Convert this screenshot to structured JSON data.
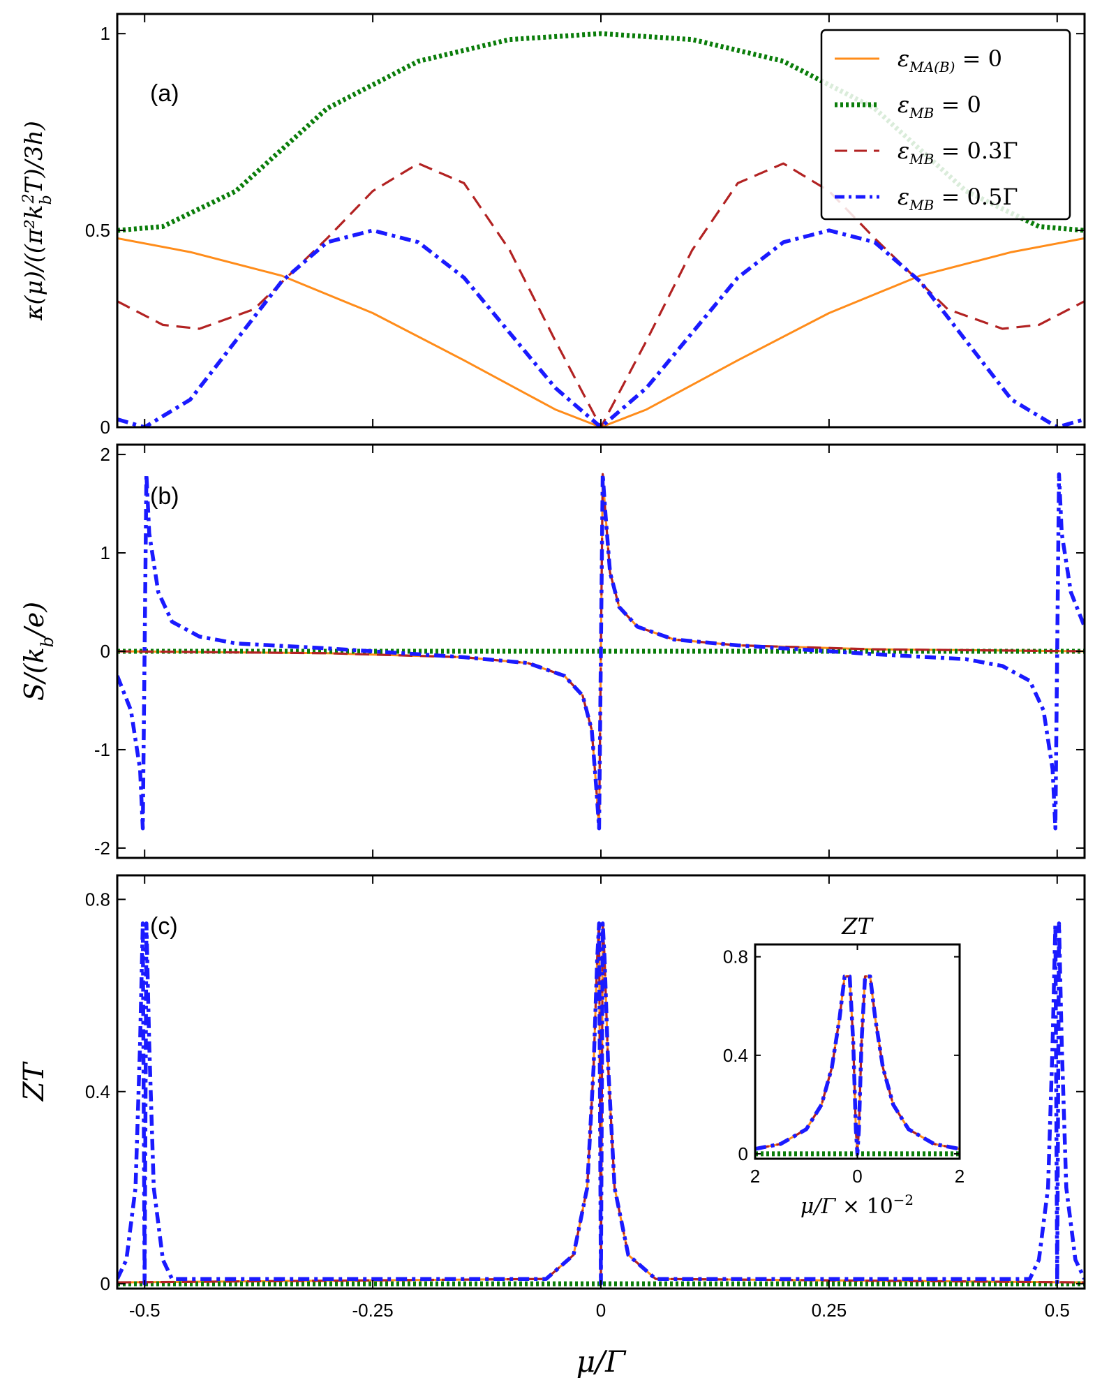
{
  "chart_data": [
    {
      "type": "line",
      "panel_label": "(a)",
      "ylabel": "κ(μ)/((π²k_b²T)/3h)",
      "xlim": [
        -0.53,
        0.53
      ],
      "ylim": [
        0,
        1.05
      ],
      "xticks": [
        -0.5,
        -0.25,
        0,
        0.25,
        0.5
      ],
      "yticks": [
        0,
        0.5,
        1
      ],
      "ytick_labels": [
        "0",
        "0.5",
        "1"
      ],
      "legend_position": "top-right",
      "series": [
        {
          "name": "ε_MA(B) = 0",
          "color": "#ff8c1a",
          "dash": "solid",
          "x": [
            -0.53,
            -0.45,
            -0.35,
            -0.25,
            -0.15,
            -0.05,
            0,
            0.05,
            0.15,
            0.25,
            0.35,
            0.45,
            0.53
          ],
          "y": [
            0.48,
            0.445,
            0.385,
            0.29,
            0.17,
            0.045,
            0,
            0.045,
            0.17,
            0.29,
            0.385,
            0.445,
            0.48
          ]
        },
        {
          "name": "ε_MB = 0",
          "color": "#0a7d0a",
          "dash": "dotted",
          "x": [
            -0.53,
            -0.48,
            -0.4,
            -0.3,
            -0.2,
            -0.1,
            0,
            0.1,
            0.2,
            0.3,
            0.4,
            0.48,
            0.53
          ],
          "y": [
            0.5,
            0.51,
            0.6,
            0.81,
            0.93,
            0.985,
            1.0,
            0.985,
            0.93,
            0.81,
            0.6,
            0.51,
            0.5
          ]
        },
        {
          "name": "ε_MB = 0.3Γ",
          "color": "#b22222",
          "dash": "dashed",
          "x": [
            -0.53,
            -0.48,
            -0.44,
            -0.38,
            -0.3,
            -0.25,
            -0.2,
            -0.15,
            -0.1,
            -0.05,
            0,
            0.05,
            0.1,
            0.15,
            0.2,
            0.25,
            0.3,
            0.38,
            0.44,
            0.48,
            0.53
          ],
          "y": [
            0.32,
            0.26,
            0.25,
            0.3,
            0.48,
            0.6,
            0.67,
            0.62,
            0.45,
            0.22,
            0,
            0.22,
            0.45,
            0.62,
            0.67,
            0.6,
            0.48,
            0.3,
            0.25,
            0.26,
            0.32
          ]
        },
        {
          "name": "ε_MB = 0.5Γ",
          "color": "#1a1aff",
          "dash": "dashdot",
          "x": [
            -0.53,
            -0.5,
            -0.45,
            -0.4,
            -0.35,
            -0.3,
            -0.25,
            -0.2,
            -0.15,
            -0.1,
            -0.05,
            0,
            0.05,
            0.1,
            0.15,
            0.2,
            0.25,
            0.3,
            0.35,
            0.4,
            0.45,
            0.5,
            0.53
          ],
          "y": [
            0.02,
            0,
            0.07,
            0.22,
            0.37,
            0.47,
            0.5,
            0.47,
            0.38,
            0.24,
            0.1,
            0,
            0.1,
            0.24,
            0.38,
            0.47,
            0.5,
            0.47,
            0.37,
            0.22,
            0.07,
            0,
            0.02
          ]
        }
      ]
    },
    {
      "type": "line",
      "panel_label": "(b)",
      "ylabel": "S/(k_b/e)",
      "xlim": [
        -0.53,
        0.53
      ],
      "ylim": [
        -2.1,
        2.1
      ],
      "xticks": [
        -0.5,
        -0.25,
        0,
        0.25,
        0.5
      ],
      "yticks": [
        -2,
        -1,
        0,
        1,
        2
      ],
      "ytick_labels": [
        "-2",
        "-1",
        "0",
        "1",
        "2"
      ],
      "series": [
        {
          "name": "ε_MA(B) = 0",
          "color": "#ff8c1a",
          "dash": "solid",
          "x": [
            -0.53,
            -0.3,
            -0.15,
            -0.08,
            -0.04,
            -0.02,
            -0.01,
            -0.005,
            -0.002,
            0,
            0.002,
            0.005,
            0.01,
            0.02,
            0.04,
            0.08,
            0.15,
            0.3,
            0.53
          ],
          "y": [
            0,
            -0.02,
            -0.06,
            -0.12,
            -0.25,
            -0.45,
            -0.8,
            -1.4,
            -1.8,
            0,
            1.8,
            1.4,
            0.8,
            0.45,
            0.25,
            0.12,
            0.06,
            0.02,
            0
          ]
        },
        {
          "name": "ε_MB = 0",
          "color": "#0a7d0a",
          "dash": "dotted",
          "x": [
            -0.53,
            0.53
          ],
          "y": [
            0,
            0
          ]
        },
        {
          "name": "ε_MB = 0.3Γ",
          "color": "#b22222",
          "dash": "dashed",
          "x": [
            -0.53,
            -0.3,
            -0.15,
            -0.08,
            -0.04,
            -0.02,
            -0.01,
            -0.005,
            -0.002,
            0,
            0.002,
            0.005,
            0.01,
            0.02,
            0.04,
            0.08,
            0.15,
            0.3,
            0.53
          ],
          "y": [
            0,
            -0.02,
            -0.06,
            -0.12,
            -0.25,
            -0.45,
            -0.8,
            -1.4,
            -1.8,
            0,
            1.8,
            1.4,
            0.8,
            0.45,
            0.25,
            0.12,
            0.06,
            0.02,
            0
          ]
        },
        {
          "name": "ε_MB = 0.5Γ",
          "color": "#1a1aff",
          "dash": "dashdot",
          "x": [
            -0.53,
            -0.515,
            -0.505,
            -0.502,
            -0.5,
            -0.498,
            -0.495,
            -0.485,
            -0.47,
            -0.44,
            -0.4,
            -0.3,
            -0.15,
            -0.08,
            -0.04,
            -0.02,
            -0.01,
            -0.005,
            -0.002,
            0,
            0.002,
            0.005,
            0.01,
            0.02,
            0.04,
            0.08,
            0.15,
            0.3,
            0.4,
            0.44,
            0.47,
            0.485,
            0.495,
            0.498,
            0.5,
            0.502,
            0.505,
            0.515,
            0.53
          ],
          "y": [
            -0.25,
            -0.6,
            -1.2,
            -1.8,
            0,
            1.8,
            1.2,
            0.6,
            0.3,
            0.15,
            0.08,
            0.03,
            -0.06,
            -0.12,
            -0.25,
            -0.45,
            -0.8,
            -1.4,
            -1.8,
            0,
            1.8,
            1.4,
            0.8,
            0.45,
            0.25,
            0.12,
            0.06,
            -0.03,
            -0.08,
            -0.15,
            -0.3,
            -0.6,
            -1.2,
            -1.8,
            0,
            1.8,
            1.2,
            0.6,
            0.25
          ]
        }
      ]
    },
    {
      "type": "line",
      "panel_label": "(c)",
      "ylabel": "ZT",
      "xlabel": "μ/Γ",
      "xlim": [
        -0.53,
        0.53
      ],
      "ylim": [
        -0.01,
        0.85
      ],
      "xticks": [
        -0.5,
        -0.25,
        0,
        0.25,
        0.5
      ],
      "xtick_labels": [
        "-0.5",
        "-0.25",
        "0",
        "0.25",
        "0.5"
      ],
      "yticks": [
        0,
        0.4,
        0.8
      ],
      "ytick_labels": [
        "0",
        "0.4",
        "0.8"
      ],
      "series": [
        {
          "name": "ε_MA(B) = 0",
          "color": "#ff8c1a",
          "dash": "solid",
          "x": [
            -0.53,
            -0.06,
            -0.03,
            -0.015,
            -0.008,
            -0.004,
            -0.002,
            0,
            0.002,
            0.004,
            0.008,
            0.015,
            0.03,
            0.06,
            0.53
          ],
          "y": [
            0.003,
            0.01,
            0.06,
            0.2,
            0.45,
            0.68,
            0.75,
            0,
            0.75,
            0.68,
            0.45,
            0.2,
            0.06,
            0.01,
            0.003
          ]
        },
        {
          "name": "ε_MB = 0",
          "color": "#0a7d0a",
          "dash": "dotted",
          "x": [
            -0.53,
            0.53
          ],
          "y": [
            0,
            0
          ]
        },
        {
          "name": "ε_MB = 0.3Γ",
          "color": "#b22222",
          "dash": "dashed",
          "x": [
            -0.53,
            -0.06,
            -0.03,
            -0.015,
            -0.008,
            -0.004,
            -0.002,
            0,
            0.002,
            0.004,
            0.008,
            0.015,
            0.03,
            0.06,
            0.53
          ],
          "y": [
            0.003,
            0.01,
            0.06,
            0.2,
            0.45,
            0.68,
            0.75,
            0,
            0.75,
            0.68,
            0.45,
            0.2,
            0.06,
            0.01,
            0.003
          ]
        },
        {
          "name": "ε_MB = 0.5Γ",
          "color": "#1a1aff",
          "dash": "dashdot",
          "x": [
            -0.53,
            -0.52,
            -0.51,
            -0.505,
            -0.502,
            -0.5,
            -0.498,
            -0.495,
            -0.49,
            -0.48,
            -0.47,
            -0.06,
            -0.03,
            -0.015,
            -0.008,
            -0.004,
            -0.002,
            0,
            0.002,
            0.004,
            0.008,
            0.015,
            0.03,
            0.06,
            0.47,
            0.48,
            0.49,
            0.495,
            0.498,
            0.5,
            0.502,
            0.505,
            0.51,
            0.52,
            0.53
          ],
          "y": [
            0.01,
            0.05,
            0.2,
            0.5,
            0.75,
            0,
            0.75,
            0.5,
            0.2,
            0.05,
            0.01,
            0.01,
            0.06,
            0.2,
            0.45,
            0.68,
            0.75,
            0,
            0.75,
            0.68,
            0.45,
            0.2,
            0.06,
            0.01,
            0.01,
            0.05,
            0.2,
            0.5,
            0.75,
            0,
            0.75,
            0.5,
            0.2,
            0.05,
            0.01
          ]
        }
      ]
    },
    {
      "type": "line",
      "inset": true,
      "title": "ZT",
      "xlabel": "μ/Γ × 10⁻²",
      "xlim": [
        -2,
        2
      ],
      "ylim": [
        -0.02,
        0.85
      ],
      "xticks": [
        -2,
        0,
        2
      ],
      "xtick_labels": [
        "2",
        "0",
        "2"
      ],
      "yticks": [
        0,
        0.4,
        0.8
      ],
      "ytick_labels": [
        "0",
        "0.4",
        "0.8"
      ],
      "series": [
        {
          "name": "ε_MA(B) = 0",
          "color": "#ff8c1a",
          "dash": "solid",
          "x": [
            -2,
            -1.5,
            -1,
            -0.7,
            -0.5,
            -0.35,
            -0.25,
            -0.15,
            -0.08,
            -0.03,
            0,
            0.03,
            0.08,
            0.15,
            0.25,
            0.35,
            0.5,
            0.7,
            1,
            1.5,
            2
          ],
          "y": [
            0.02,
            0.04,
            0.1,
            0.2,
            0.35,
            0.55,
            0.72,
            0.72,
            0.45,
            0.1,
            0,
            0.1,
            0.45,
            0.72,
            0.72,
            0.55,
            0.35,
            0.2,
            0.1,
            0.04,
            0.02
          ]
        },
        {
          "name": "ε_MB = 0",
          "color": "#0a7d0a",
          "dash": "dotted",
          "x": [
            -2,
            2
          ],
          "y": [
            0,
            0
          ]
        },
        {
          "name": "ε_MB = 0.3Γ",
          "color": "#b22222",
          "dash": "dashed",
          "x": [
            -2,
            -1.5,
            -1,
            -0.7,
            -0.5,
            -0.35,
            -0.25,
            -0.15,
            -0.08,
            -0.03,
            0,
            0.03,
            0.08,
            0.15,
            0.25,
            0.35,
            0.5,
            0.7,
            1,
            1.5,
            2
          ],
          "y": [
            0.02,
            0.04,
            0.1,
            0.2,
            0.35,
            0.55,
            0.72,
            0.72,
            0.45,
            0.1,
            0,
            0.1,
            0.45,
            0.72,
            0.72,
            0.55,
            0.35,
            0.2,
            0.1,
            0.04,
            0.02
          ]
        },
        {
          "name": "ε_MB = 0.5Γ",
          "color": "#1a1aff",
          "dash": "dashdot",
          "x": [
            -2,
            -1.5,
            -1,
            -0.7,
            -0.5,
            -0.35,
            -0.25,
            -0.15,
            -0.08,
            -0.03,
            0,
            0.03,
            0.08,
            0.15,
            0.25,
            0.35,
            0.5,
            0.7,
            1,
            1.5,
            2
          ],
          "y": [
            0.02,
            0.04,
            0.1,
            0.2,
            0.35,
            0.55,
            0.72,
            0.72,
            0.45,
            0.1,
            0,
            0.1,
            0.45,
            0.72,
            0.72,
            0.55,
            0.35,
            0.2,
            0.1,
            0.04,
            0.02
          ]
        }
      ]
    }
  ]
}
